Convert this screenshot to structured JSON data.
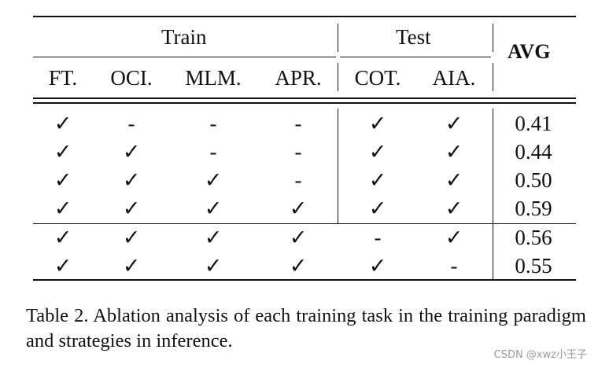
{
  "table": {
    "group_train": "Train",
    "group_test": "Test",
    "avg_header": "AVG",
    "columns": [
      "FT.",
      "OCI.",
      "MLM.",
      "APR.",
      "COT.",
      "AIA."
    ],
    "rows": [
      {
        "cells": [
          "✓",
          "-",
          "-",
          "-",
          "✓",
          "✓"
        ],
        "avg": "0.41"
      },
      {
        "cells": [
          "✓",
          "✓",
          "-",
          "-",
          "✓",
          "✓"
        ],
        "avg": "0.44"
      },
      {
        "cells": [
          "✓",
          "✓",
          "✓",
          "-",
          "✓",
          "✓"
        ],
        "avg": "0.50"
      },
      {
        "cells": [
          "✓",
          "✓",
          "✓",
          "✓",
          "✓",
          "✓"
        ],
        "avg": "0.59"
      },
      {
        "cells": [
          "✓",
          "✓",
          "✓",
          "✓",
          "-",
          "✓"
        ],
        "avg": "0.56"
      },
      {
        "cells": [
          "✓",
          "✓",
          "✓",
          "✓",
          "✓",
          "-"
        ],
        "avg": "0.55"
      }
    ]
  },
  "caption": "Table 2.  Ablation analysis of each training task in the training paradigm and strategies in inference.",
  "watermark": "CSDN @xwz小王子"
}
